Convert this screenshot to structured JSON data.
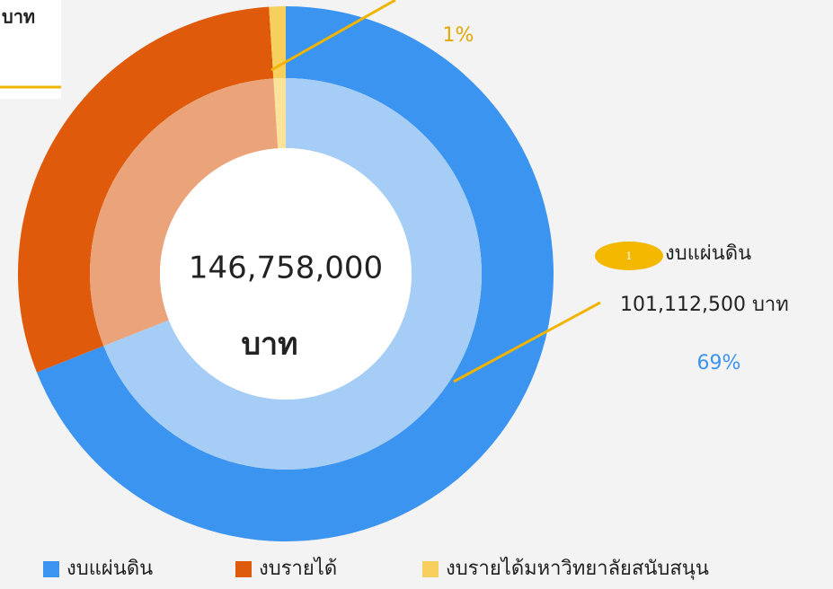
{
  "chart_data": {
    "type": "pie",
    "donut": true,
    "categories": [
      "งบแผ่นดิน",
      "งบรายได้",
      "งบรายได้มหาวิทยาลัยสนับสนุน"
    ],
    "values": [
      69,
      30,
      1
    ],
    "value_labels": [
      "69%",
      null,
      "1%"
    ],
    "colors": [
      "#3b94f0",
      "#e05a0c",
      "#f7cf5c"
    ],
    "inner_colors": [
      "#a6cdf5",
      "#eba47a",
      "#fbe39a"
    ],
    "label_colors": [
      "#3b94f0",
      null,
      "#e0a800"
    ],
    "center_label": [
      "146,758,000",
      "บาท"
    ],
    "callout": {
      "badge": "1",
      "name": "งบแผ่นดิน",
      "amount": "101,112,500 บาท"
    },
    "corner_label": "บาท",
    "legend": "bottom"
  }
}
